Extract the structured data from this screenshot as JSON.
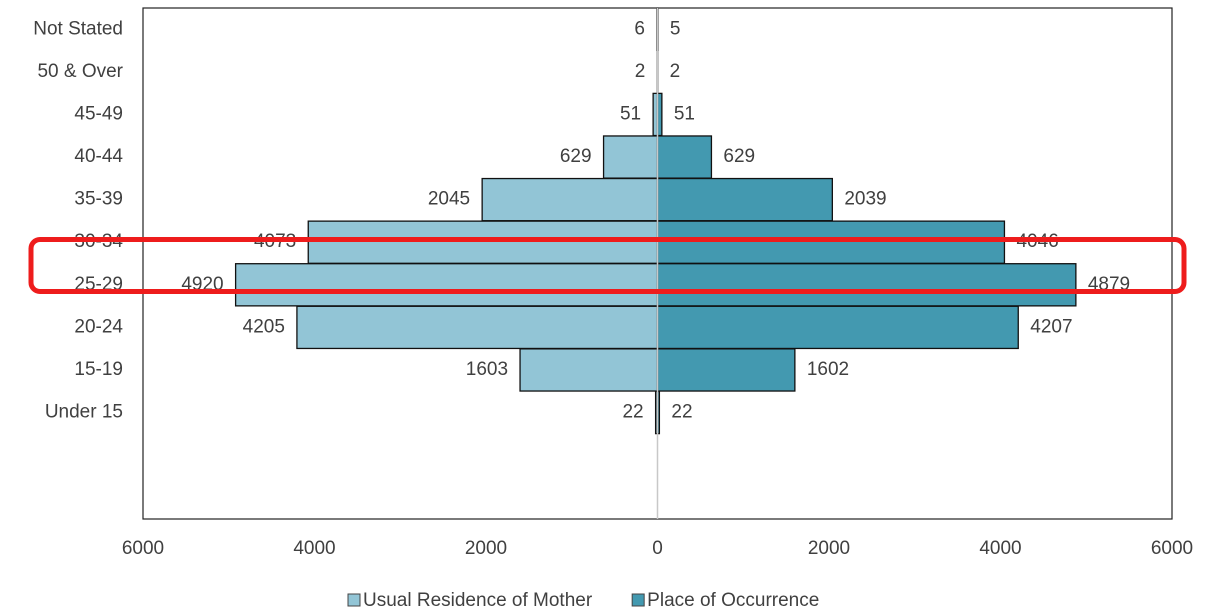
{
  "chart_data": {
    "type": "pyramid",
    "categories": [
      "Not Stated",
      "50 & Over",
      "45-49",
      "40-44",
      "35-39",
      "30-34",
      "25-29",
      "20-24",
      "15-19",
      "Under 15",
      null,
      null
    ],
    "series": [
      {
        "name": "Usual Residence of Mother",
        "color": "#92c5d6",
        "side": "left",
        "values": [
          6,
          2,
          51,
          629,
          2045,
          4073,
          4920,
          4205,
          1603,
          22,
          null,
          null
        ]
      },
      {
        "name": "Place of Occurrence",
        "color": "#4399b0",
        "side": "right",
        "values": [
          5,
          2,
          51,
          629,
          2039,
          4046,
          4879,
          4207,
          1602,
          22,
          null,
          null
        ]
      }
    ],
    "xlim": [
      -6000,
      6000
    ],
    "xticks": [
      {
        "value": -6000,
        "label": "6000"
      },
      {
        "value": -4000,
        "label": "4000"
      },
      {
        "value": -2000,
        "label": "2000"
      },
      0,
      2000,
      4000,
      6000
    ],
    "legend": "bottom"
  }
}
